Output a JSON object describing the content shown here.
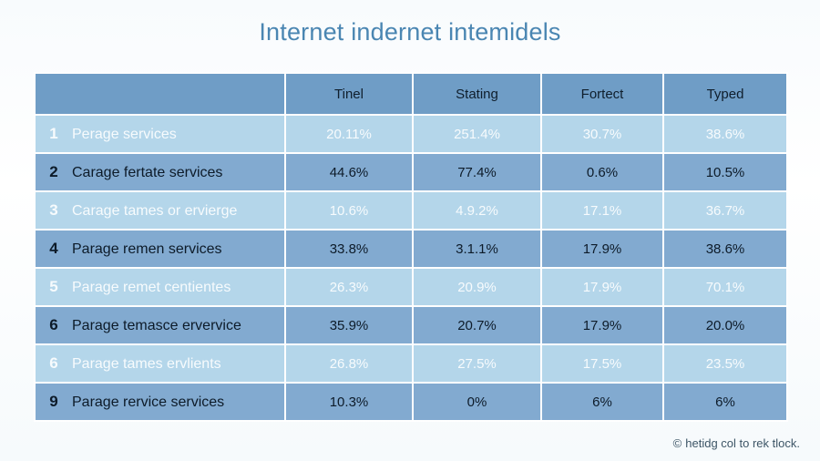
{
  "title": "Internet indernet intemidels",
  "footer": {
    "icon": "copyright-icon",
    "text": "hetidg col to rek tlock."
  },
  "chart_data": {
    "type": "table",
    "columns": [
      "",
      "Tinel",
      "Stating",
      "Fortect",
      "Typed"
    ],
    "rows": [
      {
        "num": "1",
        "label": "Perage services",
        "values": [
          "20.11%",
          "251.4%",
          "30.7%",
          "38.6%"
        ]
      },
      {
        "num": "2",
        "label": "Carage fertate services",
        "values": [
          "44.6%",
          "77.4%",
          "0.6%",
          "10.5%"
        ]
      },
      {
        "num": "3",
        "label": "Carage tames or ervierge",
        "values": [
          "10.6%",
          "4.9.2%",
          "17.1%",
          "36.7%"
        ]
      },
      {
        "num": "4",
        "label": "Parage remen services",
        "values": [
          "33.8%",
          "3.1.1%",
          "17.9%",
          "38.6%"
        ]
      },
      {
        "num": "5",
        "label": "Parage remet centientes",
        "values": [
          "26.3%",
          "20.9%",
          "17.9%",
          "70.1%"
        ]
      },
      {
        "num": "6",
        "label": "Parage temasce ervervice",
        "values": [
          "35.9%",
          "20.7%",
          "17.9%",
          "20.0%"
        ]
      },
      {
        "num": "6",
        "label": "Parage tames ervlients",
        "values": [
          "26.8%",
          "27.5%",
          "17.5%",
          "23.5%"
        ]
      },
      {
        "num": "9",
        "label": "Parage rervice services",
        "values": [
          "10.3%",
          "0%",
          "6%",
          "6%"
        ]
      }
    ],
    "colors": {
      "header": "#6f9dc6",
      "row_light": "#b4d6ea",
      "row_dark": "#82aad0",
      "title": "#4a86b2"
    }
  }
}
